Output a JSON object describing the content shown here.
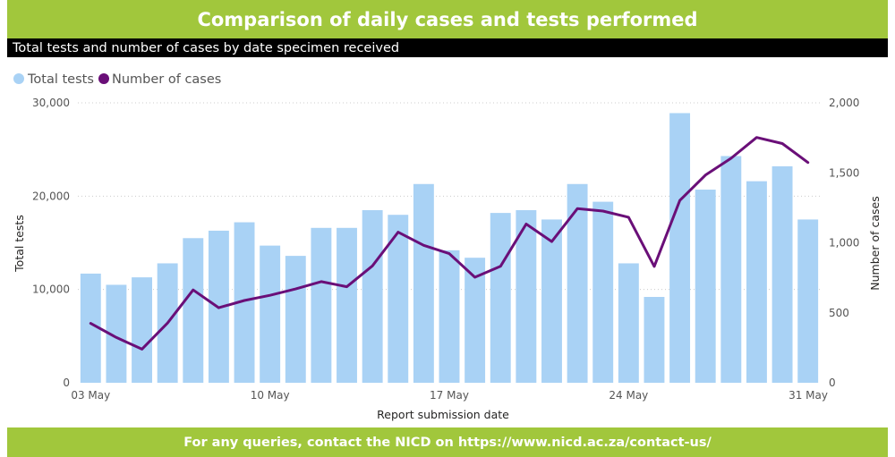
{
  "header": {
    "title": "Comparison of daily cases and tests performed",
    "subtitle": "Total tests and number of cases by date specimen received"
  },
  "footer": {
    "text": "For any queries, contact the NICD on https://www.nicd.ac.za/contact-us/"
  },
  "colors": {
    "banner": "#a1c73c",
    "bars": "#a9d2f5",
    "line": "#6a0f78",
    "grid": "#cccccc"
  },
  "chart_data": {
    "type": "bar",
    "title": "Comparison of daily cases and tests performed",
    "subtitle": "Total tests and number of cases by date specimen received",
    "xlabel": "Report submission date",
    "ylabel": "Total tests",
    "y2label": "Number of cases",
    "ylim": [
      0,
      30000
    ],
    "y2lim": [
      0,
      2000
    ],
    "yticks": [
      "0",
      "10,000",
      "20,000",
      "30,000"
    ],
    "y2ticks": [
      "0",
      "500",
      "1,000",
      "1,500",
      "2,000"
    ],
    "xtick_labels": [
      "03 May",
      "10 May",
      "17 May",
      "24 May",
      "31 May"
    ],
    "legend": [
      "Total tests",
      "Number of cases"
    ],
    "legend_position": "top-left",
    "grid": true,
    "categories": [
      "03 May",
      "04 May",
      "05 May",
      "06 May",
      "07 May",
      "08 May",
      "09 May",
      "10 May",
      "11 May",
      "12 May",
      "13 May",
      "14 May",
      "15 May",
      "16 May",
      "17 May",
      "18 May",
      "19 May",
      "20 May",
      "21 May",
      "22 May",
      "23 May",
      "24 May",
      "25 May",
      "26 May",
      "27 May",
      "28 May",
      "29 May",
      "30 May",
      "31 May"
    ],
    "series": [
      {
        "name": "Total tests",
        "type": "bar",
        "axis": "left",
        "values": [
          11700,
          10500,
          11300,
          12800,
          15500,
          16300,
          17200,
          14700,
          13600,
          16600,
          16600,
          18500,
          18000,
          21300,
          14200,
          13400,
          18200,
          18500,
          17500,
          21300,
          19400,
          12800,
          9200,
          28900,
          20700,
          24300,
          21600,
          23200,
          17500
        ]
      },
      {
        "name": "Number of cases",
        "type": "line",
        "axis": "right",
        "values": [
          424,
          324,
          240,
          427,
          663,
          536,
          588,
          625,
          670,
          723,
          686,
          835,
          1076,
          982,
          923,
          754,
          832,
          1134,
          1009,
          1244,
          1227,
          1183,
          831,
          1303,
          1484,
          1604,
          1753,
          1709,
          1574
        ]
      }
    ]
  }
}
